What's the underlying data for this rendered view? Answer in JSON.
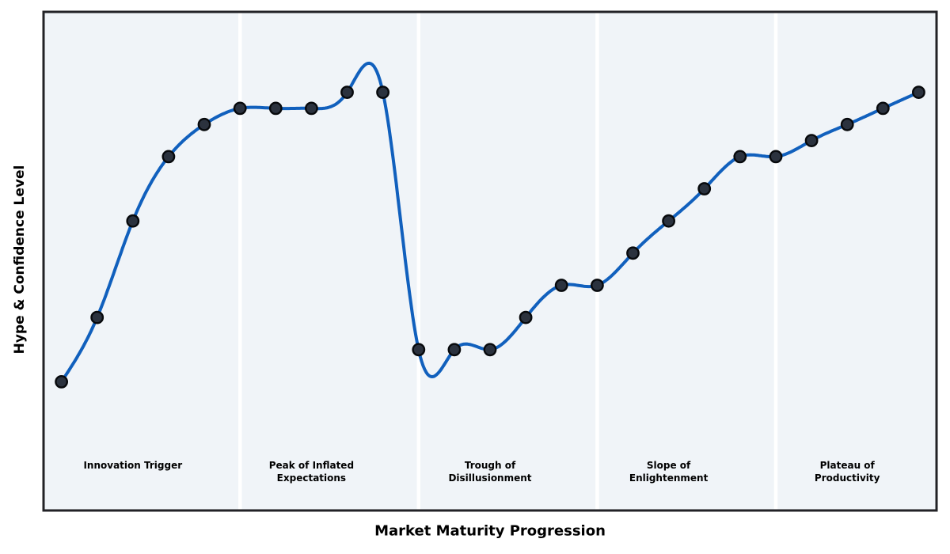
{
  "figure": {
    "xlabel": "Market Maturity Progression",
    "ylabel": "Hype & Confidence Level",
    "colors": {
      "figure_background": "#ffffff",
      "plot_background": "#f0f4f8",
      "curve": "#1160bd",
      "marker_fill": "#2b323e",
      "marker_edge": "#07090c",
      "phase_separator": "#ffffff",
      "plot_border": "#222226",
      "text": "#000000"
    }
  },
  "chart_data": {
    "type": "line",
    "title": "",
    "xlabel": "Market Maturity Progression",
    "ylabel": "Hype & Confidence Level",
    "x": [
      1,
      2,
      3,
      4,
      5,
      6,
      7,
      8,
      9,
      10,
      11,
      12,
      13,
      14,
      15,
      16,
      17,
      18,
      19,
      20,
      21,
      22,
      23,
      24,
      25
    ],
    "y": [
      5,
      25,
      55,
      75,
      85,
      90,
      90,
      90,
      95,
      95,
      15,
      15,
      15,
      25,
      35,
      35,
      45,
      55,
      65,
      75,
      75,
      80,
      85,
      90,
      95
    ],
    "series_name": "Hype & Confidence Level",
    "xlim": [
      0.5,
      25.5
    ],
    "ylim": [
      -35,
      120
    ],
    "grid": false,
    "ticks": false,
    "legend": "none",
    "smoothing": "cubic-spline",
    "markers": true,
    "phase_boundaries_x": [
      6,
      11,
      16,
      21
    ],
    "phase_label_y": -21,
    "phases": [
      {
        "label": "Innovation Trigger",
        "label_x": 3
      },
      {
        "label": "Peak of Inflated\nExpectations",
        "label_x": 8
      },
      {
        "label": "Trough of\nDisillusionment",
        "label_x": 13
      },
      {
        "label": "Slope of\nEnlightenment",
        "label_x": 18
      },
      {
        "label": "Plateau of\nProductivity",
        "label_x": 23
      }
    ]
  }
}
